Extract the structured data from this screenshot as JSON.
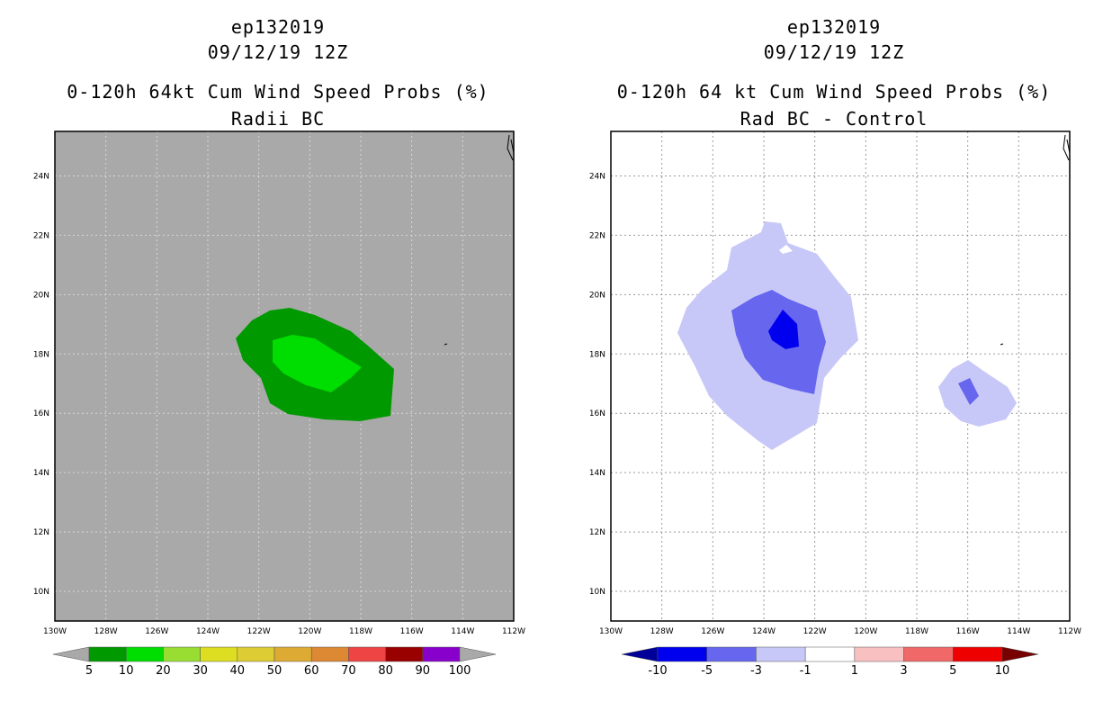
{
  "left": {
    "title_lines": [
      "ep132019",
      "09/12/19 12Z",
      "0-120h 64kt Cum Wind Speed Probs (%)",
      "Radii BC"
    ],
    "background": "#a9a9a9",
    "y_ticks": [
      "24N",
      "22N",
      "20N",
      "18N",
      "16N",
      "14N",
      "12N",
      "10N"
    ],
    "x_ticks": [
      "130W",
      "128W",
      "126W",
      "124W",
      "122W",
      "120W",
      "118W",
      "116W",
      "114W",
      "112W"
    ],
    "colorbar": {
      "colors": [
        "#009900",
        "#00dd00",
        "#99dd33",
        "#dddd22",
        "#ddcc33",
        "#ddaa33",
        "#dd8833",
        "#ee4444",
        "#990000",
        "#8800cc"
      ],
      "end_colors": [
        "#a9a9a9",
        "#a9a9a9"
      ],
      "labels": [
        "5",
        "10",
        "20",
        "30",
        "40",
        "50",
        "60",
        "70",
        "80",
        "90",
        "100"
      ]
    },
    "contour_colors": [
      "#009900",
      "#00dd00"
    ]
  },
  "right": {
    "title_lines": [
      "ep132019",
      "09/12/19 12Z",
      "0-120h 64 kt Cum Wind Speed Probs (%)",
      "Rad BC - Control"
    ],
    "background": "#ffffff",
    "y_ticks": [
      "24N",
      "22N",
      "20N",
      "18N",
      "16N",
      "14N",
      "12N",
      "10N"
    ],
    "x_ticks": [
      "130W",
      "128W",
      "126W",
      "124W",
      "122W",
      "120W",
      "118W",
      "116W",
      "114W",
      "112W"
    ],
    "colorbar": {
      "colors": [
        "#0000ee",
        "#6666ee",
        "#c8c8f8",
        "#ffffff",
        "#f8c0c0",
        "#f06868",
        "#ee0000"
      ],
      "end_colors": [
        "#000099",
        "#770000"
      ],
      "labels": [
        "-10",
        "-5",
        "-3",
        "-1",
        "1",
        "3",
        "5",
        "10"
      ]
    },
    "contour_colors": [
      "#c8c8f8",
      "#6666ee",
      "#0000ee"
    ]
  }
}
